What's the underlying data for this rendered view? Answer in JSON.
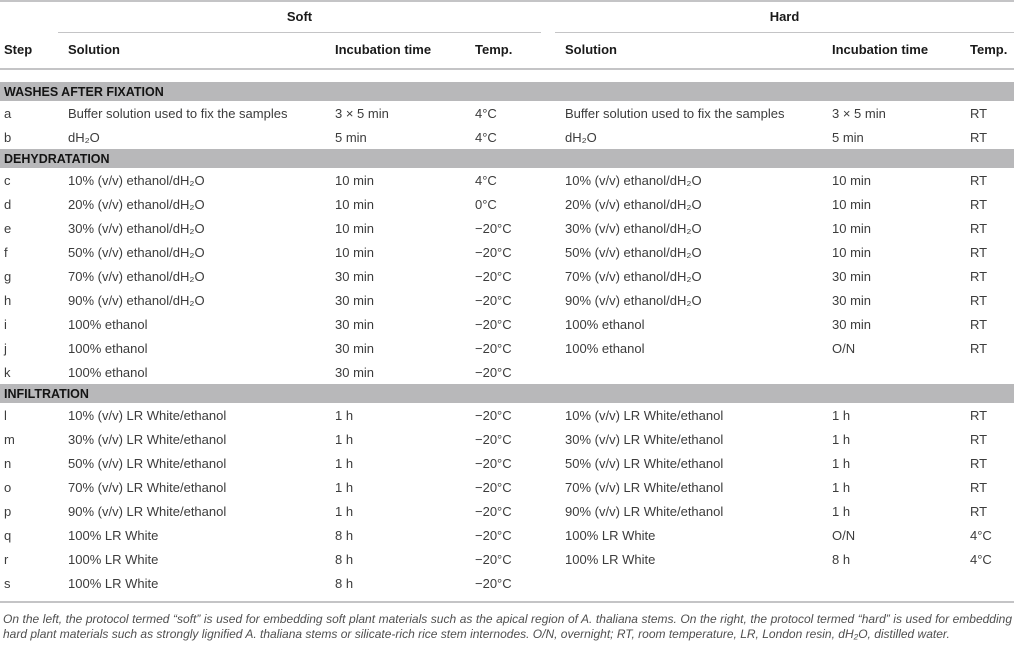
{
  "table": {
    "group_headers": {
      "soft": "Soft",
      "hard": "Hard"
    },
    "column_headers": {
      "step": "Step",
      "solution": "Solution",
      "incubation": "Incubation time",
      "temp": "Temp."
    },
    "sections": [
      {
        "title": "WASHES AFTER FIXATION",
        "rows": [
          {
            "step": "a",
            "soft": [
              "Buffer solution used to fix the samples",
              "3 × 5 min",
              "4°C"
            ],
            "hard": [
              "Buffer solution used to fix the samples",
              "3 × 5 min",
              "RT"
            ]
          },
          {
            "step": "b",
            "soft": [
              "dH₂O",
              "5 min",
              "4°C"
            ],
            "hard": [
              "dH₂O",
              "5 min",
              "RT"
            ]
          }
        ]
      },
      {
        "title": "DEHYDRATATION",
        "rows": [
          {
            "step": "c",
            "soft": [
              "10% (v/v) ethanol/dH₂O",
              "10 min",
              "4°C"
            ],
            "hard": [
              "10% (v/v) ethanol/dH₂O",
              "10 min",
              "RT"
            ]
          },
          {
            "step": "d",
            "soft": [
              "20% (v/v) ethanol/dH₂O",
              "10 min",
              "0°C"
            ],
            "hard": [
              "20% (v/v) ethanol/dH₂O",
              "10 min",
              "RT"
            ]
          },
          {
            "step": "e",
            "soft": [
              "30% (v/v) ethanol/dH₂O",
              "10 min",
              "−20°C"
            ],
            "hard": [
              "30% (v/v) ethanol/dH₂O",
              "10 min",
              "RT"
            ]
          },
          {
            "step": "f",
            "soft": [
              "50% (v/v) ethanol/dH₂O",
              "10 min",
              "−20°C"
            ],
            "hard": [
              "50% (v/v) ethanol/dH₂O",
              "10 min",
              "RT"
            ]
          },
          {
            "step": "g",
            "soft": [
              "70% (v/v) ethanol/dH₂O",
              "30 min",
              "−20°C"
            ],
            "hard": [
              "70% (v/v) ethanol/dH₂O",
              "30 min",
              "RT"
            ]
          },
          {
            "step": "h",
            "soft": [
              "90% (v/v) ethanol/dH₂O",
              "30 min",
              "−20°C"
            ],
            "hard": [
              "90% (v/v) ethanol/dH₂O",
              "30 min",
              "RT"
            ]
          },
          {
            "step": "i",
            "soft": [
              "100% ethanol",
              "30 min",
              "−20°C"
            ],
            "hard": [
              "100% ethanol",
              "30 min",
              "RT"
            ]
          },
          {
            "step": "j",
            "soft": [
              "100% ethanol",
              "30 min",
              "−20°C"
            ],
            "hard": [
              "100% ethanol",
              "O/N",
              "RT"
            ]
          },
          {
            "step": "k",
            "soft": [
              "100% ethanol",
              "30 min",
              "−20°C"
            ],
            "hard": [
              "",
              "",
              ""
            ]
          }
        ]
      },
      {
        "title": "INFILTRATION",
        "rows": [
          {
            "step": "l",
            "soft": [
              "10% (v/v) LR White/ethanol",
              "1 h",
              "−20°C"
            ],
            "hard": [
              "10% (v/v) LR White/ethanol",
              "1 h",
              "RT"
            ]
          },
          {
            "step": "m",
            "soft": [
              "30% (v/v) LR White/ethanol",
              "1 h",
              "−20°C"
            ],
            "hard": [
              "30% (v/v) LR White/ethanol",
              "1 h",
              "RT"
            ]
          },
          {
            "step": "n",
            "soft": [
              "50% (v/v) LR White/ethanol",
              "1 h",
              "−20°C"
            ],
            "hard": [
              "50% (v/v) LR White/ethanol",
              "1 h",
              "RT"
            ]
          },
          {
            "step": "o",
            "soft": [
              "70% (v/v) LR White/ethanol",
              "1 h",
              "−20°C"
            ],
            "hard": [
              "70% (v/v) LR White/ethanol",
              "1 h",
              "RT"
            ]
          },
          {
            "step": "p",
            "soft": [
              "90% (v/v) LR White/ethanol",
              "1 h",
              "−20°C"
            ],
            "hard": [
              "90% (v/v) LR White/ethanol",
              "1 h",
              "RT"
            ]
          },
          {
            "step": "q",
            "soft": [
              "100% LR White",
              "8 h",
              "−20°C"
            ],
            "hard": [
              "100% LR White",
              "O/N",
              "4°C"
            ]
          },
          {
            "step": "r",
            "soft": [
              "100% LR White",
              "8 h",
              "−20°C"
            ],
            "hard": [
              "100% LR White",
              "8 h",
              "4°C"
            ]
          },
          {
            "step": "s",
            "soft": [
              "100% LR White",
              "8 h",
              "−20°C"
            ],
            "hard": [
              "",
              "",
              ""
            ]
          }
        ]
      }
    ],
    "colors": {
      "section_band": "#b8b8ba",
      "rule": "#c4c4c6",
      "header_text": "#1a1a1a",
      "body_text": "#3c3c3c",
      "footnote_text": "#4f4f4f"
    }
  },
  "footnote": "On the left, the protocol termed “soft” is used for embedding soft plant materials such as the apical region of A. thaliana stems. On the right, the protocol termed “hard” is used for embedding hard plant materials such as strongly lignified A. thaliana stems or silicate-rich rice stem internodes. O/N, overnight; RT, room temperature, LR, London resin, dH₂O, distilled water."
}
